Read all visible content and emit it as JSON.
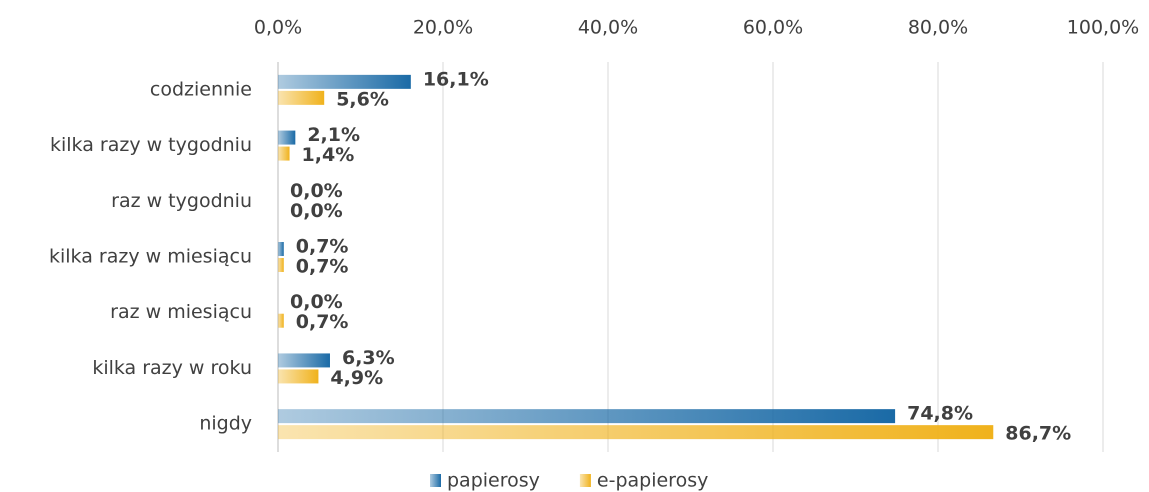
{
  "chart_data": {
    "type": "hbar",
    "categories": [
      "codziennie",
      "kilka razy w tygodniu",
      "raz w tygodniu",
      "kilka razy w miesiącu",
      "raz w miesiącu",
      "kilka razy w roku",
      "nigdy"
    ],
    "series": [
      {
        "name": "papierosy",
        "color": "#1a6aa6",
        "values": [
          16.1,
          2.1,
          0.0,
          0.7,
          0.0,
          6.3,
          74.8
        ],
        "value_labels": [
          "16,1%",
          "2,1%",
          "0,0%",
          "0,7%",
          "0,0%",
          "6,3%",
          "74,8%"
        ]
      },
      {
        "name": "e-papierosy",
        "color": "#f0b21c",
        "values": [
          5.6,
          1.4,
          0.0,
          0.7,
          0.7,
          4.9,
          86.7
        ],
        "value_labels": [
          "5,6%",
          "1,4%",
          "0,0%",
          "0,7%",
          "0,7%",
          "4,9%",
          "86,7%"
        ]
      }
    ],
    "xlim": [
      0,
      100
    ],
    "xticks": [
      {
        "value": 0,
        "label": "0,0%"
      },
      {
        "value": 20,
        "label": "20,0%"
      },
      {
        "value": 40,
        "label": "40,0%"
      },
      {
        "value": 60,
        "label": "60,0%"
      },
      {
        "value": 80,
        "label": "80,0%"
      },
      {
        "value": 100,
        "label": "100,0%"
      }
    ],
    "grid": true,
    "legend": "bottom"
  }
}
